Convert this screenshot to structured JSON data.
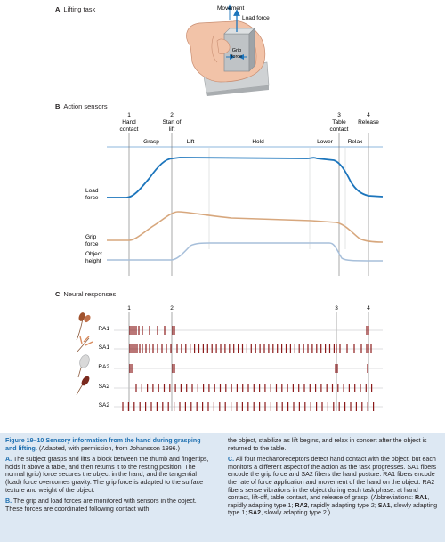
{
  "panels": {
    "a": {
      "letter": "A",
      "title": "Lifting task",
      "movement": "Movement",
      "load_force": "Load force",
      "grip_force": "Grip\nforce"
    },
    "b": {
      "letter": "B",
      "title": "Action sensors"
    },
    "c": {
      "letter": "C",
      "title": "Neural responses"
    }
  },
  "events": [
    {
      "num": "1",
      "label": "Hand\ncontact"
    },
    {
      "num": "2",
      "label": "Start of\nlift"
    },
    {
      "num": "3",
      "label": "Table\ncontact"
    },
    {
      "num": "4",
      "label": "Release"
    }
  ],
  "phases": [
    "Grasp",
    "Lift",
    "Hold",
    "Lower",
    "Relax"
  ],
  "traces": [
    "Load\nforce",
    "Grip\nforce",
    "Object\nheight"
  ],
  "colors": {
    "load": "#1c75bc",
    "grip": "#d7a77d",
    "height": "#a7bfda",
    "spike": "#8b1a1a",
    "phase_bar": "#c6dbee",
    "caption_bg": "#dde8f3",
    "accent": "#1d6fb0"
  },
  "fibers": [
    "RA1",
    "SA1",
    "RA2",
    "SA2",
    "SA2"
  ],
  "caption": {
    "figure_number": "Figure 19–10",
    "title": "Sensory information from the hand during grasping and lifting.",
    "credit": "(Adapted, with permission, from Johansson 1996.)",
    "para_a_label": "A.",
    "para_a": "The subject grasps and lifts a block between the thumb and fingertips, holds it above a table, and then returns it to the resting position. The normal (grip) force secures the object in the hand, and the tangential (load) force overcomes gravity. The grip force is adapted to the surface texture and weight of the object.",
    "para_b_label": "B.",
    "para_b": "The grip and load forces are monitored with sensors in the object. These forces are coordinated following contact with",
    "para_b_cont": "the object, stabilize as lift begins, and relax in concert after the object is returned to the table.",
    "para_c_label": "C.",
    "para_c": "All four mechanoreceptors detect hand contact with the object, but each monitors a different aspect of the action as the task progresses. SA1 fibers encode the grip force and SA2 fibers the hand posture. RA1 fibers encode the rate of force application and movement of the hand on the object. RA2 fibers sense vibrations in the object during each task phase: at hand contact, lift-off, table contact, and release of grasp. (Abbreviations: RA1, rapidly adapting type 1; RA2, rapidly adapting type 2; SA1, slowly adapting type 1; SA2, slowly adapting type 2.)",
    "abbr_terms": [
      "RA1",
      "RA2",
      "SA1",
      "SA2"
    ]
  }
}
